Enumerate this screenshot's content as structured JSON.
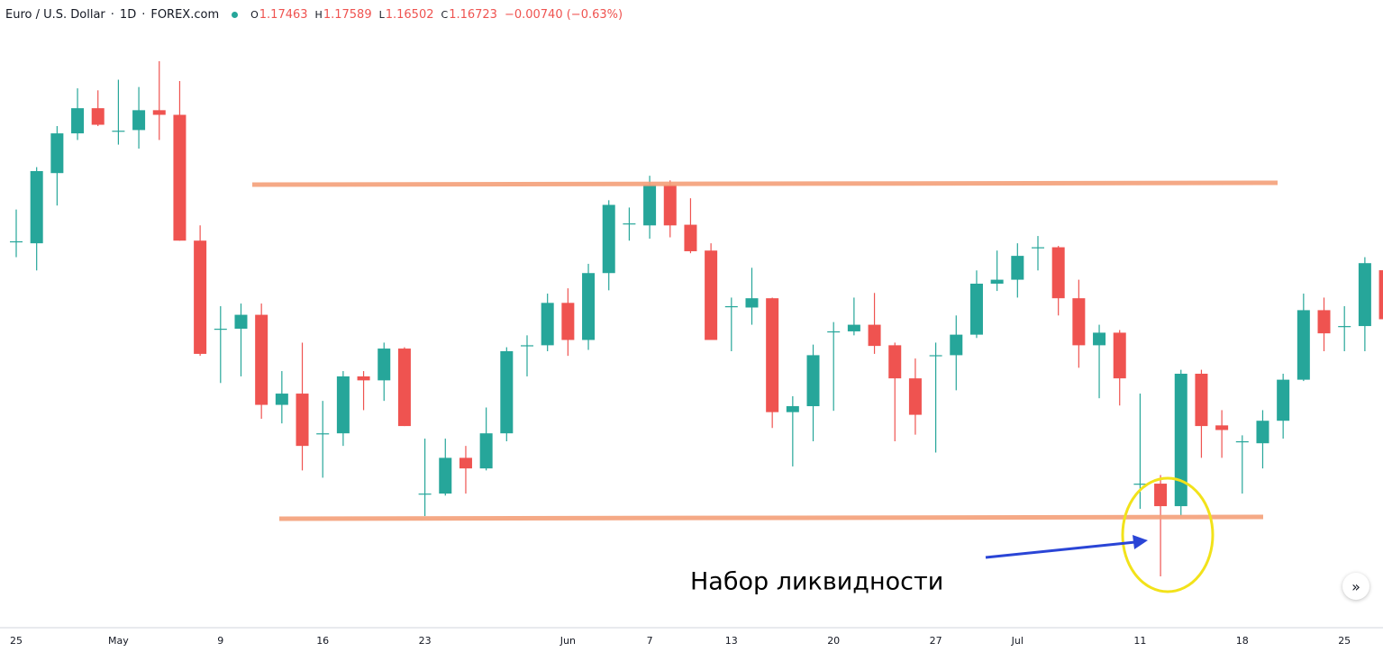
{
  "chart_data": {
    "type": "candlestick",
    "header": {
      "symbol": "Euro / U.S. Dollar",
      "separator": "·",
      "interval": "1D",
      "source": "FOREX.com",
      "ohlc_labels": [
        "O",
        "H",
        "L",
        "C"
      ],
      "change": "−0.00740 (−0.63%)"
    },
    "annotation": "Набор ликвидности",
    "scroll_button": "»",
    "up_color": "#26a69a",
    "down_color": "#ef5350",
    "ylim": [
      1.1216,
      1.21
    ],
    "categories": [
      "25",
      null,
      null,
      null,
      null,
      "May",
      null,
      null,
      null,
      null,
      "9",
      null,
      null,
      null,
      null,
      "16",
      null,
      null,
      null,
      null,
      "23",
      null,
      null,
      null,
      null,
      null,
      null,
      "Jun",
      null,
      null,
      null,
      "7",
      null,
      null,
      null,
      "13",
      null,
      null,
      null,
      null,
      "20",
      null,
      null,
      null,
      null,
      "27",
      null,
      null,
      null,
      "Jul",
      null,
      null,
      null,
      null,
      null,
      "11",
      null,
      null,
      null,
      null,
      "18",
      null,
      null,
      null,
      null,
      "25",
      null,
      null
    ],
    "open": [
      1.179,
      1.1787,
      1.1893,
      1.1953,
      1.1991,
      1.1957,
      1.1958,
      1.1988,
      1.1981,
      1.1791,
      1.1658,
      1.1658,
      1.1679,
      1.1543,
      1.156,
      1.15,
      1.15,
      1.1586,
      1.158,
      1.1628,
      1.1409,
      1.1409,
      1.1463,
      1.1447,
      1.15,
      1.1633,
      1.1633,
      1.1697,
      1.1641,
      1.1742,
      1.1817,
      1.1814,
      1.1875,
      1.1815,
      1.1776,
      1.1692,
      1.169,
      1.1704,
      1.1532,
      1.1541,
      1.1654,
      1.1654,
      1.1664,
      1.1633,
      1.1583,
      1.1618,
      1.1618,
      1.1649,
      1.1726,
      1.1732,
      1.1781,
      1.1781,
      1.1704,
      1.1633,
      1.1652,
      1.1424,
      1.1424,
      1.139,
      1.159,
      1.1512,
      1.1488,
      1.1485,
      1.1519,
      1.1581,
      1.1686,
      1.1662,
      1.1662,
      1.17463
    ],
    "high": [
      1.1838,
      1.1902,
      1.1964,
      1.2021,
      1.2018,
      1.2034,
      1.2023,
      1.2062,
      1.2032,
      1.1814,
      1.1692,
      1.1696,
      1.1696,
      1.1594,
      1.1637,
      1.1549,
      1.1594,
      1.1594,
      1.1637,
      1.163,
      1.1492,
      1.1492,
      1.1481,
      1.1539,
      1.163,
      1.1648,
      1.1711,
      1.1719,
      1.1756,
      1.1852,
      1.1841,
      1.1889,
      1.1882,
      1.1855,
      1.1787,
      1.1705,
      1.175,
      1.1705,
      1.1556,
      1.1634,
      1.1668,
      1.1705,
      1.1712,
      1.1637,
      1.1613,
      1.1637,
      1.1678,
      1.1746,
      1.1776,
      1.1787,
      1.1798,
      1.1783,
      1.1732,
      1.1664,
      1.1656,
      1.156,
      1.1437,
      1.1596,
      1.1596,
      1.1535,
      1.1497,
      1.1535,
      1.159,
      1.1711,
      1.1705,
      1.1692,
      1.1766,
      1.17589
    ],
    "low": [
      1.1766,
      1.1746,
      1.1844,
      1.1943,
      1.1964,
      1.1936,
      1.193,
      1.1943,
      1.1791,
      1.1617,
      1.1576,
      1.1586,
      1.1522,
      1.1515,
      1.1444,
      1.1433,
      1.1481,
      1.1535,
      1.1549,
      1.1511,
      1.1375,
      1.1406,
      1.1409,
      1.1444,
      1.1488,
      1.1586,
      1.1624,
      1.1617,
      1.1626,
      1.1716,
      1.1791,
      1.1794,
      1.1796,
      1.1772,
      1.1641,
      1.1624,
      1.1664,
      1.1508,
      1.145,
      1.1488,
      1.1534,
      1.1648,
      1.162,
      1.1488,
      1.1498,
      1.1471,
      1.1565,
      1.1644,
      1.1715,
      1.1705,
      1.1746,
      1.1678,
      1.1599,
      1.1553,
      1.1542,
      1.1386,
      1.1284,
      1.1376,
      1.1463,
      1.1463,
      1.1409,
      1.1447,
      1.1492,
      1.1579,
      1.1624,
      1.1624,
      1.1624,
      1.16502
    ],
    "close": [
      1.179,
      1.1896,
      1.1953,
      1.1991,
      1.1966,
      1.1957,
      1.1988,
      1.1981,
      1.1791,
      1.162,
      1.1658,
      1.1679,
      1.1543,
      1.156,
      1.1481,
      1.15,
      1.1586,
      1.158,
      1.1628,
      1.1511,
      1.1409,
      1.1463,
      1.1447,
      1.15,
      1.1624,
      1.1633,
      1.1697,
      1.1641,
      1.1742,
      1.1845,
      1.1817,
      1.1875,
      1.1814,
      1.1775,
      1.1641,
      1.1692,
      1.1704,
      1.1532,
      1.1541,
      1.1618,
      1.1654,
      1.1664,
      1.1632,
      1.1583,
      1.1528,
      1.1618,
      1.1649,
      1.1726,
      1.1732,
      1.1768,
      1.1781,
      1.1704,
      1.1633,
      1.1652,
      1.1583,
      1.1424,
      1.139,
      1.159,
      1.1511,
      1.1505,
      1.1488,
      1.1519,
      1.1581,
      1.1686,
      1.1651,
      1.1662,
      1.1757,
      1.16723
    ]
  }
}
